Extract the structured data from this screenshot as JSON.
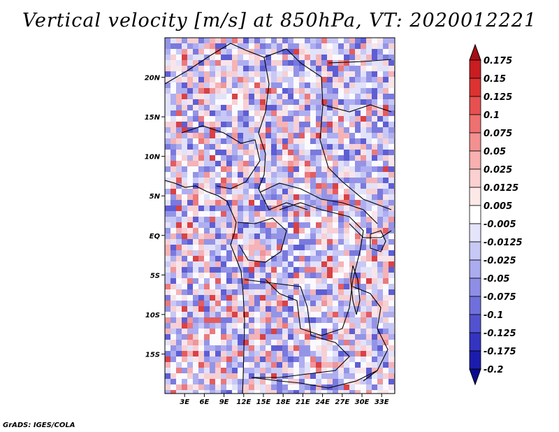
{
  "title": "Vertical velocity [m/s] at 850hPa, VT: 2020012221",
  "credit": "GrADS: IGES/COLA",
  "map": {
    "lat_labels": [
      "20N",
      "15N",
      "10N",
      "5N",
      "EQ",
      "5S",
      "10S",
      "15S"
    ],
    "lon_labels": [
      "3E",
      "6E",
      "9E",
      "12E",
      "15E",
      "18E",
      "21E",
      "24E",
      "27E",
      "30E",
      "33E"
    ],
    "lon_range_deg": [
      0,
      35
    ],
    "lat_range_deg": [
      -20,
      25
    ]
  },
  "colorbar": {
    "labels": [
      "0.175",
      "0.15",
      "0.125",
      "0.1",
      "0.075",
      "0.05",
      "0.025",
      "0.0125",
      "0.005",
      "-0.005",
      "-0.0125",
      "-0.025",
      "-0.05",
      "-0.075",
      "-0.1",
      "-0.125",
      "-0.175",
      "-0.2"
    ],
    "colors": [
      "#a50f15",
      "#c81d21",
      "#dc3232",
      "#e65050",
      "#ee7070",
      "#f39090",
      "#f8b0b0",
      "#fbd0d0",
      "#fde8e8",
      "#ffffff",
      "#e4e4fb",
      "#c8c8f5",
      "#ababef",
      "#8e8ee6",
      "#7070dc",
      "#5252d0",
      "#3434c0",
      "#1c1cac",
      "#0a0a90"
    ]
  }
}
